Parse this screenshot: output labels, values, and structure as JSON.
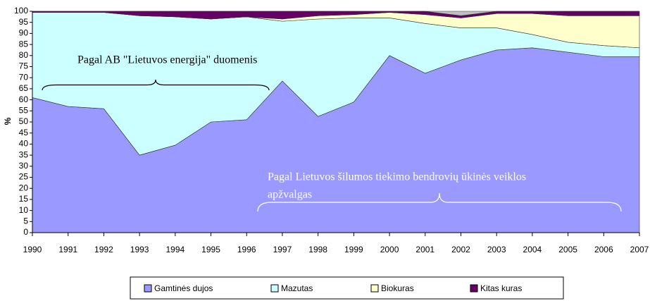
{
  "chart_data": {
    "type": "stacked_area",
    "y_label": "%",
    "x": [
      1990,
      1991,
      1992,
      1993,
      1994,
      1995,
      1996,
      1997,
      1998,
      1999,
      2000,
      2001,
      2002,
      2003,
      2004,
      2005,
      2006,
      2007
    ],
    "xlim": [
      1990,
      2007
    ],
    "xticks": [
      1990,
      1991,
      1992,
      1993,
      1994,
      1995,
      1996,
      1997,
      1998,
      1999,
      2000,
      2001,
      2002,
      2003,
      2004,
      2005,
      2006,
      2007
    ],
    "ylim": [
      0,
      100
    ],
    "yticks": [
      0,
      5,
      10,
      15,
      20,
      25,
      30,
      35,
      40,
      45,
      50,
      55,
      60,
      65,
      70,
      75,
      80,
      85,
      90,
      95,
      100
    ],
    "series": [
      {
        "name": "Gamtinės dujos",
        "color": "#9999ff",
        "values": [
          61,
          57,
          56,
          35,
          39.5,
          50,
          51,
          68.5,
          52.5,
          59,
          80,
          72,
          78,
          82.5,
          83.5,
          81.5,
          79.5,
          79.5
        ]
      },
      {
        "name": "Mazutas",
        "color": "#ccffff",
        "values": [
          38.5,
          42.5,
          43.5,
          63,
          58,
          46.5,
          46.5,
          27,
          44,
          38,
          17,
          22.5,
          14.5,
          10,
          6,
          4.5,
          5,
          4
        ]
      },
      {
        "name": "Biokuras",
        "color": "#ffffcc",
        "values": [
          0,
          0,
          0,
          0,
          0,
          0,
          0,
          1,
          1.5,
          1.5,
          2.5,
          4,
          4.5,
          6.5,
          9.5,
          12,
          13.5,
          14.5
        ]
      },
      {
        "name": "Kitas kuras",
        "color": "#660066",
        "values": [
          0.5,
          0.5,
          0.5,
          2,
          2.5,
          3.5,
          2.5,
          3.5,
          2,
          1.5,
          0.5,
          1.5,
          1,
          1,
          1,
          2,
          2,
          2
        ]
      },
      {
        "color": "#c0c0c0",
        "values": [
          0,
          0,
          0,
          0,
          0,
          0,
          0,
          0,
          0,
          0,
          0,
          0,
          2,
          0,
          0,
          0,
          0,
          0
        ]
      }
    ],
    "annotations": [
      [
        "Pagal AB \"Lietuvos energija\" duomenis"
      ],
      [
        "Pagal Lietuvos šilumos tiekimo bendrovių ūkinės veiklos",
        "apžvalgas"
      ]
    ]
  }
}
